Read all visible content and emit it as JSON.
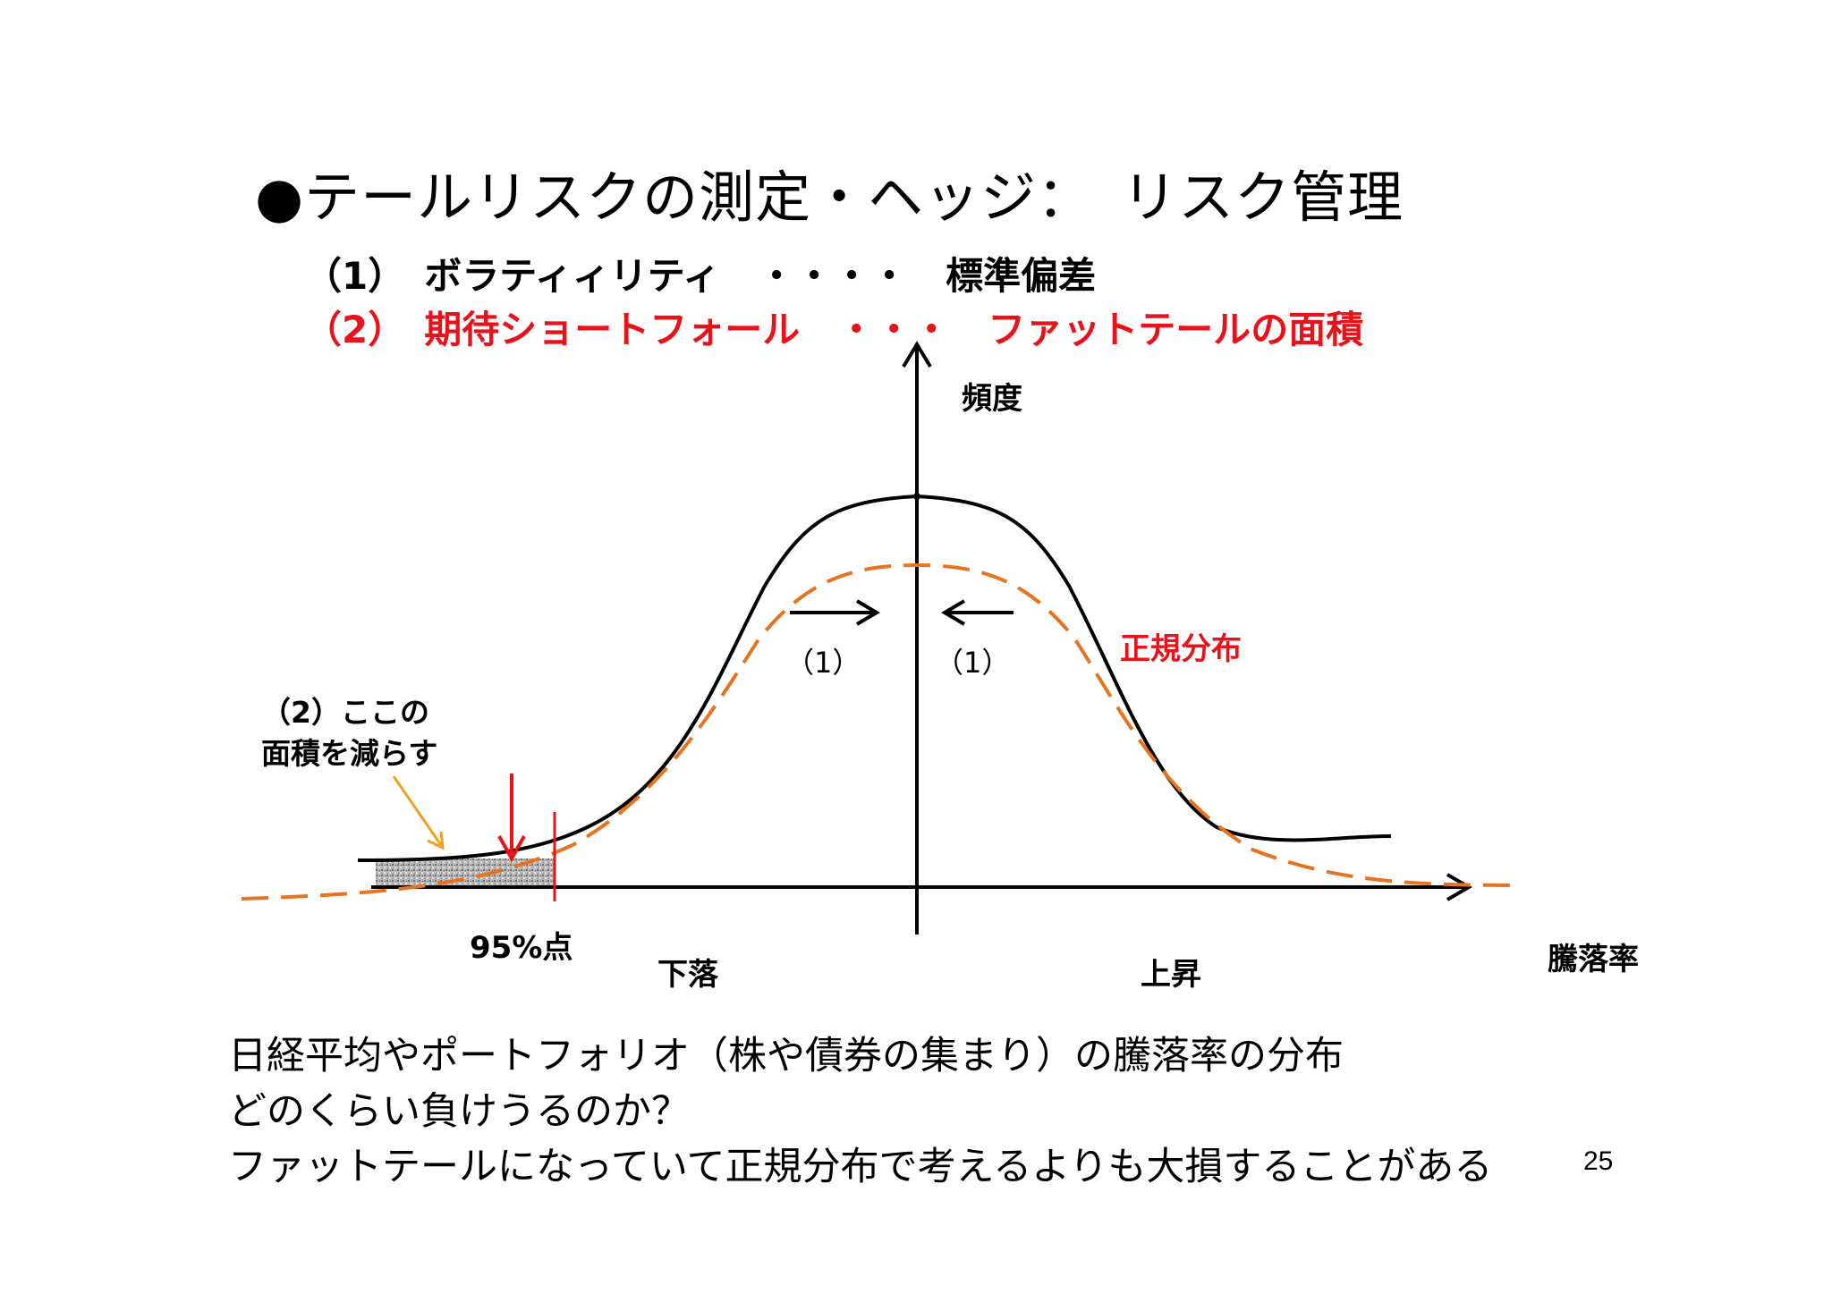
{
  "slide": {
    "title": "●テールリスクの測定・ヘッジ：　リスク管理",
    "subtitle1": "（1）　ボラティィリティ　・・・・　標準偏差",
    "subtitle2": "（2）　期待ショートフォール　・・・　ファットテールの面積",
    "page_number": "25"
  },
  "diagram": {
    "y_axis_label": "頻度",
    "x_axis_label": "騰落率",
    "normal_label": "正規分布",
    "arrow_label_left": "（1）",
    "arrow_label_right": "（1）",
    "area_note_line1": "（2）ここの",
    "area_note_line2": "面積を減らす",
    "percentile_label": "95%点",
    "down_label": "下落",
    "up_label": "上昇"
  },
  "footer": {
    "line1": "日経平均やポートフォリオ（株や債券の集まり）の騰落率の分布",
    "line2": "どのくらい負けうるのか？",
    "line3": "ファットテールになっていて正規分布で考えるよりも大損することがある"
  },
  "colors": {
    "accent_red": "#e8131a",
    "normal_curve": "#e8731f",
    "note_arrow": "#f0a020"
  }
}
